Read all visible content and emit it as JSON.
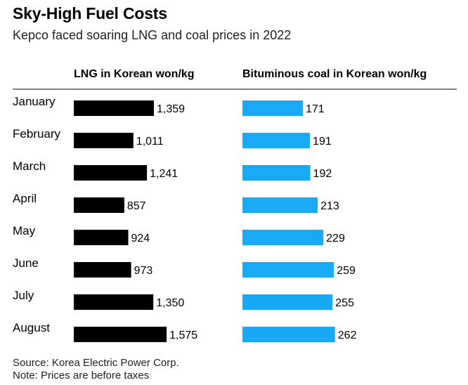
{
  "title": "Sky-High Fuel Costs",
  "subtitle": "Kepco faced soaring LNG and coal prices in 2022",
  "footer": {
    "source": "Source: Korea Electric Power Corp.",
    "note": "Note: Prices are before taxes"
  },
  "colors": {
    "lng": "#000000",
    "coal": "#1aaaf5",
    "rule": "#000000",
    "text": "#000000"
  },
  "chart_data": {
    "type": "bar",
    "orientation": "horizontal",
    "categories": [
      "January",
      "February",
      "March",
      "April",
      "May",
      "June",
      "July",
      "August"
    ],
    "series": [
      {
        "name": "LNG in Korean won/kg",
        "values": [
          1359,
          1011,
          1241,
          857,
          924,
          973,
          1350,
          1575
        ],
        "labels": [
          "1,359",
          "1,011",
          "1,241",
          "857",
          "924",
          "973",
          "1,350",
          "1,575"
        ]
      },
      {
        "name": "Bituminous coal in Korean won/kg",
        "values": [
          171,
          191,
          192,
          213,
          229,
          259,
          255,
          262
        ],
        "labels": [
          "171",
          "191",
          "192",
          "213",
          "229",
          "259",
          "255",
          "262"
        ]
      }
    ],
    "xlim": [
      0,
      1575
    ]
  }
}
